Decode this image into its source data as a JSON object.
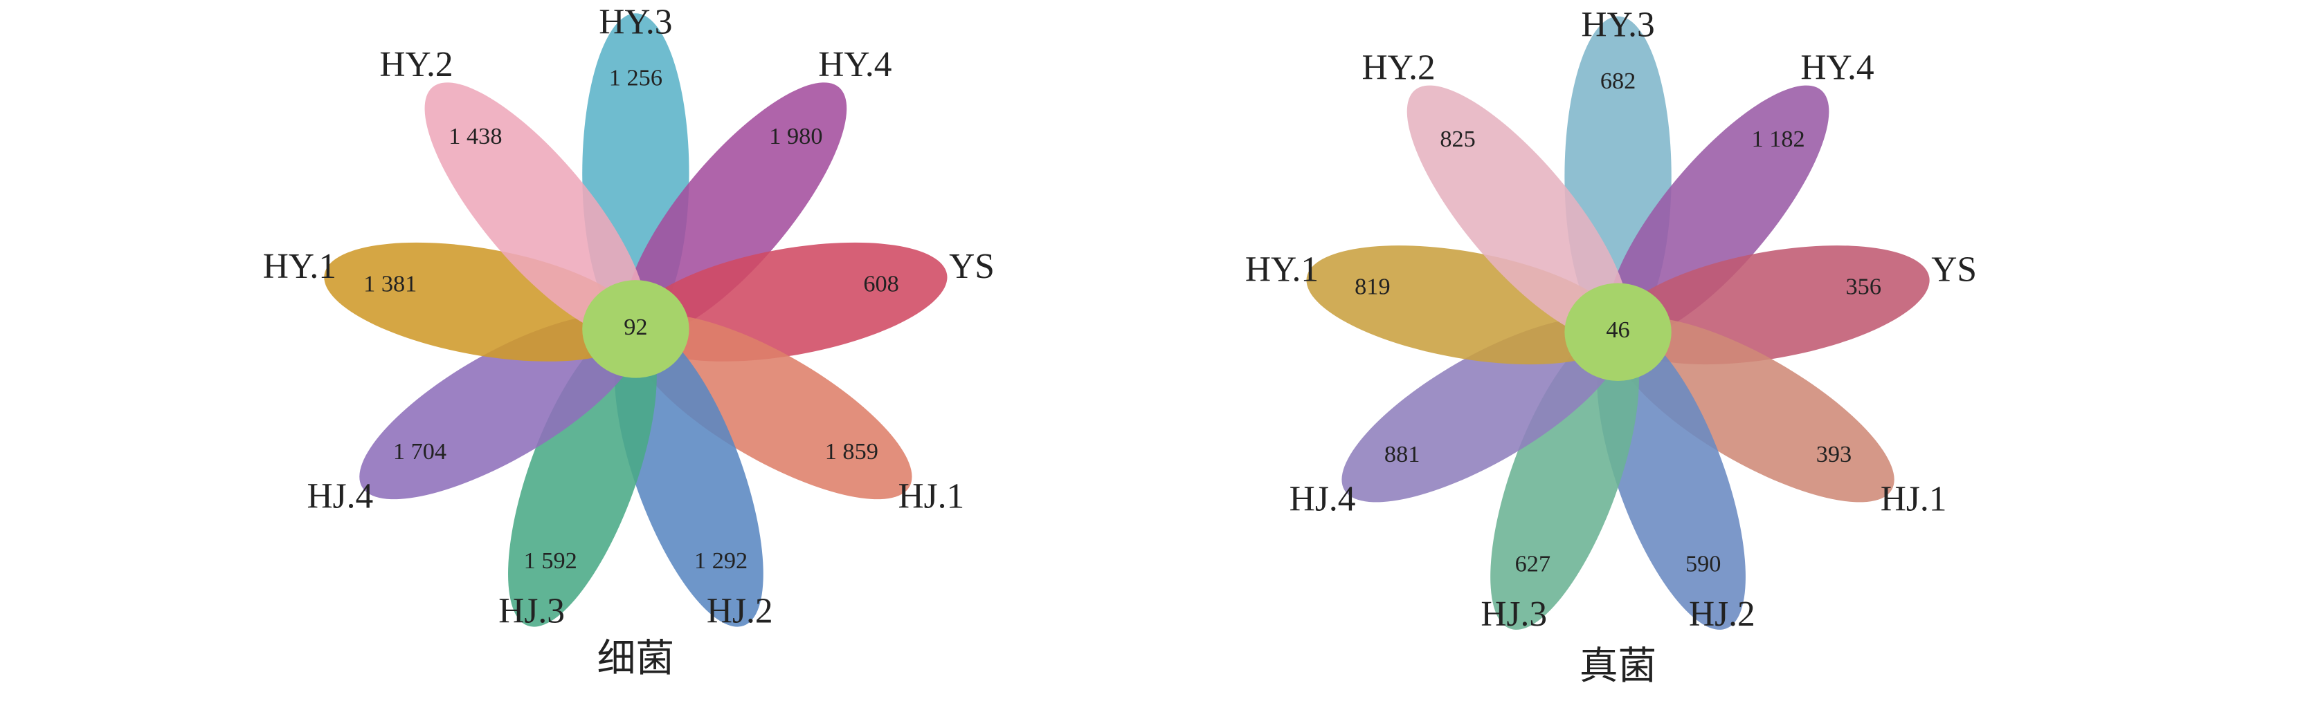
{
  "chart_data": [
    {
      "type": "flower",
      "title": "细菌",
      "categories": [
        "HY.3",
        "HY.4",
        "YS",
        "HJ.1",
        "HJ.2",
        "HJ.3",
        "HJ.4",
        "HY.1",
        "HY.2"
      ],
      "values": [
        1256,
        1980,
        608,
        1859,
        1292,
        1592,
        1704,
        1381,
        1438
      ],
      "value_labels": [
        "1 256",
        "1 980",
        "608",
        "1 859",
        "1 292",
        "1 592",
        "1 704",
        "1 381",
        "1 438"
      ],
      "colors": [
        "#5bb3c8",
        "#a44f9e",
        "#d04a63",
        "#de7f6a",
        "#5a87c2",
        "#4aaa86",
        "#8e70bb",
        "#cf9a2a",
        "#eea9bb"
      ],
      "core": 92,
      "core_color": "#a6d36a"
    },
    {
      "type": "flower",
      "title": "真菌",
      "categories": [
        "HY.3",
        "HY.4",
        "YS",
        "HJ.1",
        "HJ.2",
        "HJ.3",
        "HJ.4",
        "HY.1",
        "HY.2"
      ],
      "values": [
        682,
        1182,
        356,
        393,
        590,
        627,
        881,
        819,
        825
      ],
      "value_labels": [
        "682",
        "1 182",
        "356",
        "393",
        "590",
        "627",
        "881",
        "819",
        "825"
      ],
      "colors": [
        "#7fb6cb",
        "#9a5ba6",
        "#c05a72",
        "#cf8a78",
        "#6a8ac2",
        "#6bb394",
        "#9080bd",
        "#c9a040",
        "#e6b3c0"
      ],
      "core": 46,
      "core_color": "#a6d36a"
    }
  ]
}
